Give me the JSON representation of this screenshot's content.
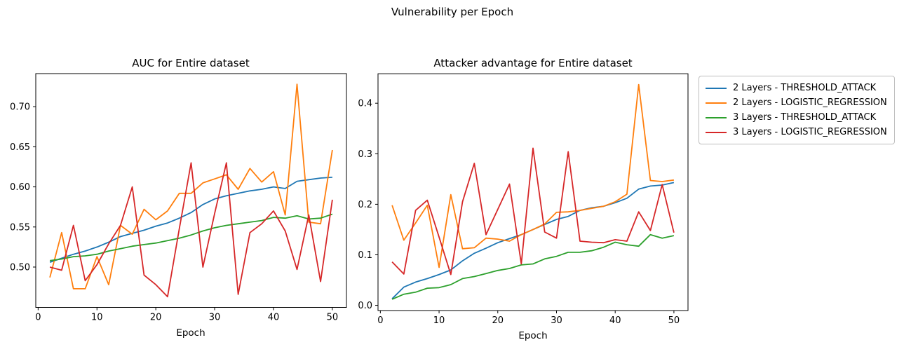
{
  "figure": {
    "suptitle": "Vulnerability per Epoch",
    "background": "#ffffff"
  },
  "colors": {
    "blue": "#1f77b4",
    "orange": "#ff7f0e",
    "green": "#2ca02c",
    "red": "#d62728"
  },
  "legend": {
    "items": [
      {
        "label": "2 Layers - THRESHOLD_ATTACK",
        "color": "#1f77b4"
      },
      {
        "label": "2 Layers - LOGISTIC_REGRESSION",
        "color": "#ff7f0e"
      },
      {
        "label": "3 Layers - THRESHOLD_ATTACK",
        "color": "#2ca02c"
      },
      {
        "label": "3 Layers - LOGISTIC_REGRESSION",
        "color": "#d62728"
      }
    ]
  },
  "chart_data": [
    {
      "type": "line",
      "title": "AUC for Entire dataset",
      "xlabel": "Epoch",
      "ylabel": "",
      "grid": false,
      "legend_position": "outside-right",
      "x": [
        2,
        4,
        6,
        8,
        10,
        12,
        14,
        16,
        18,
        20,
        22,
        24,
        26,
        28,
        30,
        32,
        34,
        36,
        38,
        40,
        42,
        44,
        46,
        48,
        50
      ],
      "xlim": [
        -0.4,
        52.4
      ],
      "ylim": [
        0.4497,
        0.7413
      ],
      "xticks": {
        "values": [
          0,
          10,
          20,
          30,
          40,
          50
        ],
        "labels": [
          "0",
          "10",
          "20",
          "30",
          "40",
          "50"
        ]
      },
      "yticks": {
        "values": [
          0.5,
          0.55,
          0.6,
          0.65,
          0.7
        ],
        "labels": [
          "0.50",
          "0.55",
          "0.60",
          "0.65",
          "0.70"
        ]
      },
      "series": [
        {
          "name": "2 Layers - THRESHOLD_ATTACK",
          "color": "#1f77b4",
          "values": [
            0.506,
            0.511,
            0.516,
            0.52,
            0.525,
            0.531,
            0.538,
            0.542,
            0.546,
            0.551,
            0.555,
            0.561,
            0.568,
            0.578,
            0.585,
            0.589,
            0.592,
            0.595,
            0.597,
            0.6,
            0.598,
            0.607,
            0.609,
            0.611,
            0.612
          ]
        },
        {
          "name": "2 Layers - LOGISTIC_REGRESSION",
          "color": "#ff7f0e",
          "values": [
            0.487,
            0.543,
            0.473,
            0.473,
            0.513,
            0.478,
            0.552,
            0.541,
            0.572,
            0.559,
            0.57,
            0.592,
            0.592,
            0.605,
            0.61,
            0.615,
            0.597,
            0.623,
            0.606,
            0.619,
            0.565,
            0.728,
            0.556,
            0.554,
            0.646
          ]
        },
        {
          "name": "3 Layers - THRESHOLD_ATTACK",
          "color": "#2ca02c",
          "values": [
            0.508,
            0.51,
            0.513,
            0.514,
            0.516,
            0.52,
            0.523,
            0.526,
            0.528,
            0.53,
            0.533,
            0.536,
            0.54,
            0.545,
            0.549,
            0.552,
            0.554,
            0.556,
            0.558,
            0.562,
            0.561,
            0.564,
            0.56,
            0.561,
            0.566
          ]
        },
        {
          "name": "3 Layers - LOGISTIC_REGRESSION",
          "color": "#d62728",
          "values": [
            0.5,
            0.496,
            0.552,
            0.483,
            0.503,
            0.529,
            0.552,
            0.6,
            0.49,
            0.478,
            0.463,
            0.548,
            0.63,
            0.5,
            0.567,
            0.63,
            0.466,
            0.543,
            0.554,
            0.57,
            0.545,
            0.497,
            0.565,
            0.482,
            0.584
          ]
        }
      ]
    },
    {
      "type": "line",
      "title": "Attacker advantage for Entire dataset",
      "xlabel": "Epoch",
      "ylabel": "",
      "grid": false,
      "legend_position": "outside-right",
      "x": [
        2,
        4,
        6,
        8,
        10,
        12,
        14,
        16,
        18,
        20,
        22,
        24,
        26,
        28,
        30,
        32,
        34,
        36,
        38,
        40,
        42,
        44,
        46,
        48,
        50
      ],
      "xlim": [
        -0.4,
        52.4
      ],
      "ylim": [
        -0.0103,
        0.4583
      ],
      "xticks": {
        "values": [
          0,
          10,
          20,
          30,
          40,
          50
        ],
        "labels": [
          "0",
          "10",
          "20",
          "30",
          "40",
          "50"
        ]
      },
      "yticks": {
        "values": [
          0.0,
          0.1,
          0.2,
          0.3,
          0.4
        ],
        "labels": [
          "0.0",
          "0.1",
          "0.2",
          "0.3",
          "0.4"
        ]
      },
      "series": [
        {
          "name": "2 Layers - THRESHOLD_ATTACK",
          "color": "#1f77b4",
          "values": [
            0.013,
            0.036,
            0.046,
            0.053,
            0.061,
            0.07,
            0.088,
            0.103,
            0.113,
            0.124,
            0.132,
            0.14,
            0.15,
            0.16,
            0.17,
            0.176,
            0.188,
            0.193,
            0.196,
            0.203,
            0.212,
            0.23,
            0.236,
            0.238,
            0.243
          ]
        },
        {
          "name": "2 Layers - LOGISTIC_REGRESSION",
          "color": "#ff7f0e",
          "values": [
            0.198,
            0.129,
            0.163,
            0.198,
            0.075,
            0.219,
            0.112,
            0.114,
            0.133,
            0.131,
            0.127,
            0.14,
            0.15,
            0.161,
            0.184,
            0.185,
            0.188,
            0.192,
            0.196,
            0.205,
            0.22,
            0.437,
            0.247,
            0.245,
            0.248
          ]
        },
        {
          "name": "3 Layers - THRESHOLD_ATTACK",
          "color": "#2ca02c",
          "values": [
            0.012,
            0.022,
            0.026,
            0.034,
            0.035,
            0.041,
            0.053,
            0.057,
            0.063,
            0.069,
            0.073,
            0.08,
            0.082,
            0.092,
            0.097,
            0.105,
            0.105,
            0.108,
            0.115,
            0.125,
            0.12,
            0.117,
            0.14,
            0.133,
            0.138
          ]
        },
        {
          "name": "3 Layers - LOGISTIC_REGRESSION",
          "color": "#d62728",
          "values": [
            0.086,
            0.062,
            0.188,
            0.208,
            0.135,
            0.061,
            0.205,
            0.281,
            0.14,
            0.19,
            0.24,
            0.082,
            0.311,
            0.145,
            0.133,
            0.304,
            0.127,
            0.125,
            0.124,
            0.13,
            0.127,
            0.185,
            0.148,
            0.239,
            0.144
          ]
        }
      ]
    }
  ]
}
